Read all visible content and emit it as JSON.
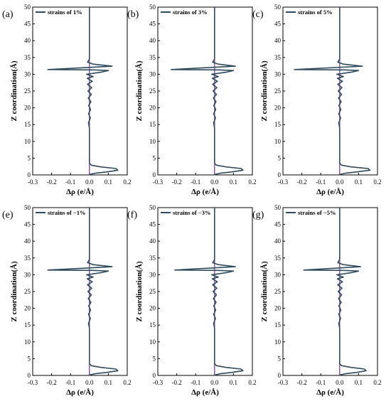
{
  "figure": {
    "colors": {
      "profile": "#2E4A5C",
      "zero_line": "#7B3FA0",
      "axis": "#000000"
    }
  },
  "chart_data": [
    {
      "type": "line",
      "panel_label": "(a)",
      "legend": "strains of 1%",
      "xlabel": "Δρ (e/Å)",
      "ylabel": "Z coordination(Å)",
      "xlim": [
        -0.3,
        0.2
      ],
      "ylim": [
        0,
        50
      ],
      "xticks": [
        "-0.3",
        "-0.2",
        "-0.1",
        "0.0",
        "0.1",
        "0.2"
      ],
      "yticks": [
        "0",
        "5",
        "10",
        "15",
        "20",
        "25",
        "30",
        "35",
        "40",
        "45",
        "50"
      ],
      "zero_line_x": 0,
      "series": [
        {
          "x": [
            0,
            0.005,
            0.03,
            0.09,
            0.15,
            0.14,
            0.06,
            0.01,
            0.0,
            0.0,
            -0.005,
            0.005,
            -0.005,
            0.006,
            -0.004,
            0.008,
            -0.006,
            0.01,
            -0.008,
            0.012,
            -0.01,
            0.015,
            -0.012,
            0.02,
            -0.015,
            0.06,
            0.1,
            0.02,
            -0.22,
            0.12,
            0.02,
            -0.01,
            0.0,
            0.0
          ],
          "y": [
            0,
            0.2,
            0.5,
            0.9,
            1.4,
            1.9,
            2.4,
            2.9,
            3.5,
            14,
            15.5,
            17,
            18.2,
            19.5,
            20.7,
            21.8,
            22.9,
            24,
            25,
            26,
            27,
            27.9,
            28.8,
            29.3,
            30,
            30.6,
            31.1,
            31.3,
            31.4,
            32.4,
            33,
            33.6,
            34.5,
            50
          ]
        }
      ]
    },
    {
      "type": "line",
      "panel_label": "(b)",
      "legend": "strains of 3%",
      "xlabel": "Δρ (e/Å)",
      "ylabel": "Z coordination(Å)",
      "xlim": [
        -0.3,
        0.2
      ],
      "ylim": [
        0,
        50
      ],
      "xticks": [
        "-0.3",
        "-0.2",
        "-0.1",
        "0.0",
        "0.1",
        "0.2"
      ],
      "yticks": [
        "0",
        "5",
        "10",
        "15",
        "20",
        "25",
        "30",
        "35",
        "40",
        "45",
        "50"
      ],
      "zero_line_x": 0,
      "series": [
        {
          "x": [
            0,
            0.005,
            0.03,
            0.09,
            0.15,
            0.14,
            0.06,
            0.01,
            0.0,
            0.0,
            -0.005,
            0.005,
            -0.005,
            0.006,
            -0.004,
            0.008,
            -0.006,
            0.01,
            -0.008,
            0.012,
            -0.01,
            0.015,
            -0.012,
            0.02,
            -0.015,
            0.06,
            0.1,
            0.02,
            -0.23,
            0.11,
            0.02,
            -0.01,
            0.0,
            0.0
          ],
          "y": [
            0,
            0.2,
            0.5,
            0.9,
            1.4,
            1.9,
            2.4,
            2.9,
            3.5,
            14,
            15.5,
            17,
            18.2,
            19.5,
            20.7,
            21.8,
            22.9,
            24,
            25,
            26,
            27,
            27.9,
            28.8,
            29.3,
            30,
            30.6,
            31.1,
            31.3,
            31.4,
            32.4,
            33,
            33.6,
            34.5,
            50
          ]
        }
      ]
    },
    {
      "type": "line",
      "panel_label": "(c)",
      "legend": "strains of 5%",
      "xlabel": "Δρ (e/Å)",
      "ylabel": "Z coordination(Å)",
      "xlim": [
        -0.3,
        0.2
      ],
      "ylim": [
        0,
        50
      ],
      "xticks": [
        "-0.3",
        "-0.2",
        "-0.1",
        "0.0",
        "0.1",
        "0.2"
      ],
      "yticks": [
        "0",
        "5",
        "10",
        "15",
        "20",
        "25",
        "30",
        "35",
        "40",
        "45",
        "50"
      ],
      "zero_line_x": 0,
      "series": [
        {
          "x": [
            0,
            0.005,
            0.03,
            0.09,
            0.16,
            0.15,
            0.06,
            0.01,
            0.0,
            0.0,
            -0.005,
            0.005,
            -0.005,
            0.006,
            -0.004,
            0.008,
            -0.006,
            0.01,
            -0.008,
            0.012,
            -0.01,
            0.015,
            -0.012,
            0.02,
            -0.015,
            0.06,
            0.1,
            0.02,
            -0.24,
            0.12,
            0.02,
            -0.01,
            0.0,
            0.0
          ],
          "y": [
            0,
            0.2,
            0.5,
            0.9,
            1.4,
            1.9,
            2.4,
            2.9,
            3.5,
            14,
            15.5,
            17,
            18.2,
            19.5,
            20.7,
            21.8,
            22.9,
            24,
            25,
            26,
            27,
            27.9,
            28.8,
            29.3,
            30,
            30.6,
            31.1,
            31.3,
            31.4,
            32.4,
            33,
            33.6,
            34.5,
            50
          ]
        }
      ]
    },
    {
      "type": "line",
      "panel_label": "(e)",
      "legend": "strains of −1%",
      "xlabel": "Δρ (e/Å)",
      "ylabel": "Z coordination(Å)",
      "xlim": [
        -0.3,
        0.2
      ],
      "ylim": [
        0,
        50
      ],
      "xticks": [
        "-0.3",
        "-0.2",
        "-0.1",
        "0.0",
        "0.1",
        "0.2"
      ],
      "yticks": [
        "0",
        "5",
        "10",
        "15",
        "20",
        "25",
        "30",
        "35",
        "40",
        "45",
        "50"
      ],
      "zero_line_x": 0,
      "series": [
        {
          "x": [
            0,
            0.005,
            0.03,
            0.09,
            0.15,
            0.14,
            0.06,
            0.01,
            0.0,
            0.0,
            -0.005,
            0.005,
            -0.005,
            0.006,
            -0.004,
            0.008,
            -0.006,
            0.01,
            -0.008,
            0.012,
            -0.01,
            0.015,
            -0.012,
            0.02,
            -0.015,
            0.06,
            0.1,
            0.02,
            -0.22,
            0.12,
            0.02,
            -0.01,
            0.0,
            0.0
          ],
          "y": [
            0,
            0.2,
            0.5,
            0.9,
            1.4,
            1.9,
            2.4,
            2.9,
            3.5,
            14,
            15.5,
            17,
            18.2,
            19.5,
            20.7,
            21.8,
            22.9,
            24,
            25,
            26,
            27,
            27.9,
            28.8,
            29.3,
            30,
            30.6,
            31.1,
            31.3,
            31.4,
            32.4,
            33,
            33.6,
            34.5,
            50
          ]
        }
      ]
    },
    {
      "type": "line",
      "panel_label": "(f)",
      "legend": "strains of −3%",
      "xlabel": "Δρ (e/Å)",
      "ylabel": "Z coordination(Å)",
      "xlim": [
        -0.3,
        0.2
      ],
      "ylim": [
        0,
        50
      ],
      "xticks": [
        "-0.3",
        "-0.2",
        "-0.1",
        "0.0",
        "0.1",
        "0.2"
      ],
      "yticks": [
        "0",
        "5",
        "10",
        "15",
        "20",
        "25",
        "30",
        "35",
        "40",
        "45",
        "50"
      ],
      "zero_line_x": 0,
      "series": [
        {
          "x": [
            0,
            0.005,
            0.03,
            0.09,
            0.15,
            0.14,
            0.06,
            0.01,
            0.0,
            0.0,
            -0.005,
            0.005,
            -0.005,
            0.006,
            -0.004,
            0.008,
            -0.006,
            0.01,
            -0.008,
            0.012,
            -0.01,
            0.015,
            -0.012,
            0.02,
            -0.015,
            0.06,
            0.1,
            0.02,
            -0.21,
            0.11,
            0.02,
            -0.01,
            0.0,
            0.0
          ],
          "y": [
            0,
            0.2,
            0.5,
            0.9,
            1.4,
            1.9,
            2.4,
            2.9,
            3.5,
            14,
            15.5,
            17,
            18.2,
            19.5,
            20.7,
            21.8,
            22.9,
            24,
            25,
            26,
            27,
            27.9,
            28.8,
            29.3,
            30,
            30.6,
            31.1,
            31.3,
            31.4,
            32.4,
            33,
            33.6,
            34.5,
            50
          ]
        }
      ]
    },
    {
      "type": "line",
      "panel_label": "(g)",
      "legend": "strains of −5%",
      "xlabel": "Δρ (e/Å)",
      "ylabel": "Z coordination(Å)",
      "xlim": [
        -0.3,
        0.2
      ],
      "ylim": [
        0,
        50
      ],
      "xticks": [
        "-0.3",
        "-0.2",
        "-0.1",
        "0.0",
        "0.1",
        "0.2"
      ],
      "yticks": [
        "0",
        "5",
        "10",
        "15",
        "20",
        "25",
        "30",
        "35",
        "40",
        "45",
        "50"
      ],
      "zero_line_x": 0,
      "series": [
        {
          "x": [
            0,
            0.005,
            0.03,
            0.09,
            0.14,
            0.13,
            0.06,
            0.01,
            0.0,
            0.0,
            -0.005,
            0.005,
            -0.005,
            0.006,
            -0.004,
            0.008,
            -0.006,
            0.01,
            -0.008,
            0.012,
            -0.01,
            0.015,
            -0.012,
            0.02,
            -0.015,
            0.06,
            0.1,
            0.02,
            -0.19,
            0.11,
            0.02,
            -0.01,
            0.0,
            0.0
          ],
          "y": [
            0,
            0.2,
            0.5,
            0.9,
            1.4,
            1.9,
            2.4,
            2.9,
            3.5,
            14,
            15.5,
            17,
            18.2,
            19.5,
            20.7,
            21.8,
            22.9,
            24,
            25,
            26,
            27,
            27.9,
            28.8,
            29.3,
            30,
            30.6,
            31.1,
            31.3,
            31.4,
            32.4,
            33,
            33.6,
            34.5,
            50
          ]
        }
      ]
    }
  ]
}
